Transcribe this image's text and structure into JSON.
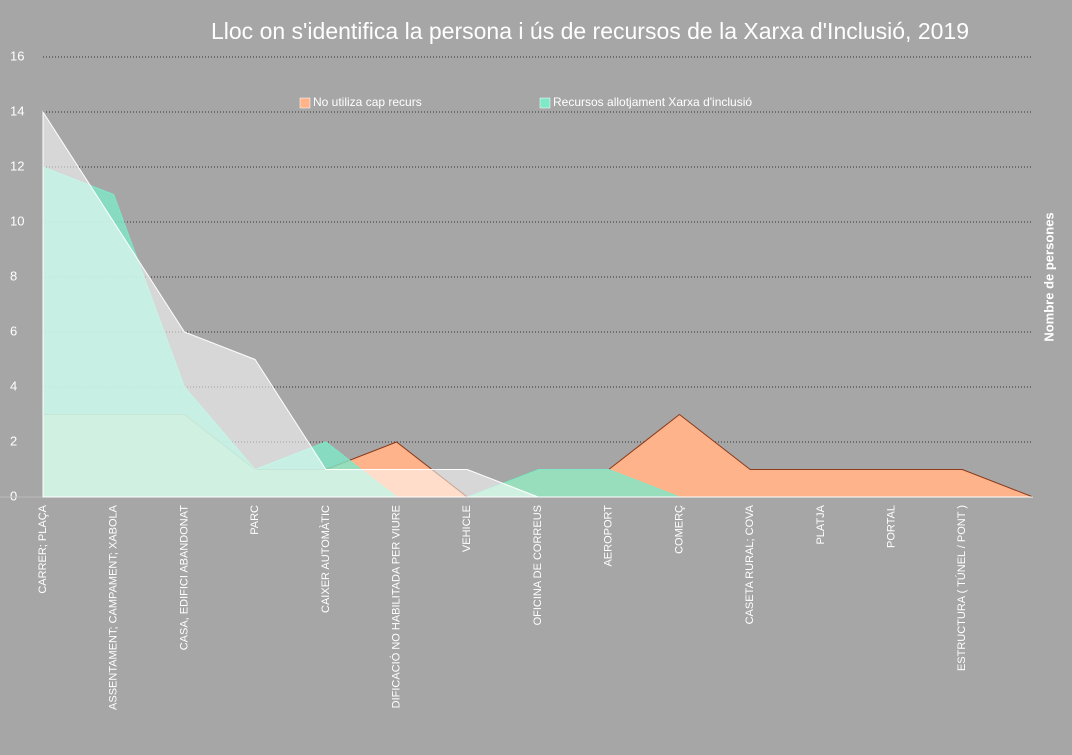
{
  "chart_data": {
    "type": "area",
    "title": "Lloc on s'identifica la persona i ús de recursos de la Xarxa d'Inclusió, 2019",
    "y_axis_label": "Nombre de persones",
    "categories": [
      "CARRER; PLAÇA",
      "ASSENTAMENT; CAMPAMENT; XABOLA",
      "CASA, EDIFICI ABANDONAT",
      "PARC",
      "CAIXER AUTOMÀTIC",
      "DIFICACIÓ NO HABILITADA PER VIURE",
      "VEHICLE",
      "OFICINA DE CORREUS",
      "AEROPORT",
      "COMERÇ",
      "CASETA RURAL; COVA",
      "PLATJA",
      "PORTAL",
      "ESTRUCTURA ( TÚNEL / PONT )",
      null
    ],
    "series": [
      {
        "name": "No utiliza cap recurs",
        "color": "#ffb38a",
        "values": [
          3,
          3,
          3,
          1,
          1,
          2,
          0,
          1,
          1,
          3,
          1,
          1,
          1,
          1,
          0
        ]
      },
      {
        "name": "Recursos allotjament Xarxa d'inclusió",
        "color": "#7ee8c8",
        "values": [
          12,
          11,
          4,
          1,
          2,
          0,
          0,
          1,
          1,
          0,
          0,
          0,
          0,
          0,
          0
        ]
      },
      {
        "color": "#ffffff",
        "values": [
          14,
          10,
          6,
          5,
          1,
          1,
          1,
          0,
          0,
          0,
          0,
          0,
          0,
          0,
          0
        ]
      }
    ],
    "ylim": [
      0,
      16
    ],
    "yticks": [
      0,
      2,
      4,
      6,
      8,
      10,
      12,
      14,
      16
    ],
    "grid": true,
    "legend": "top"
  }
}
